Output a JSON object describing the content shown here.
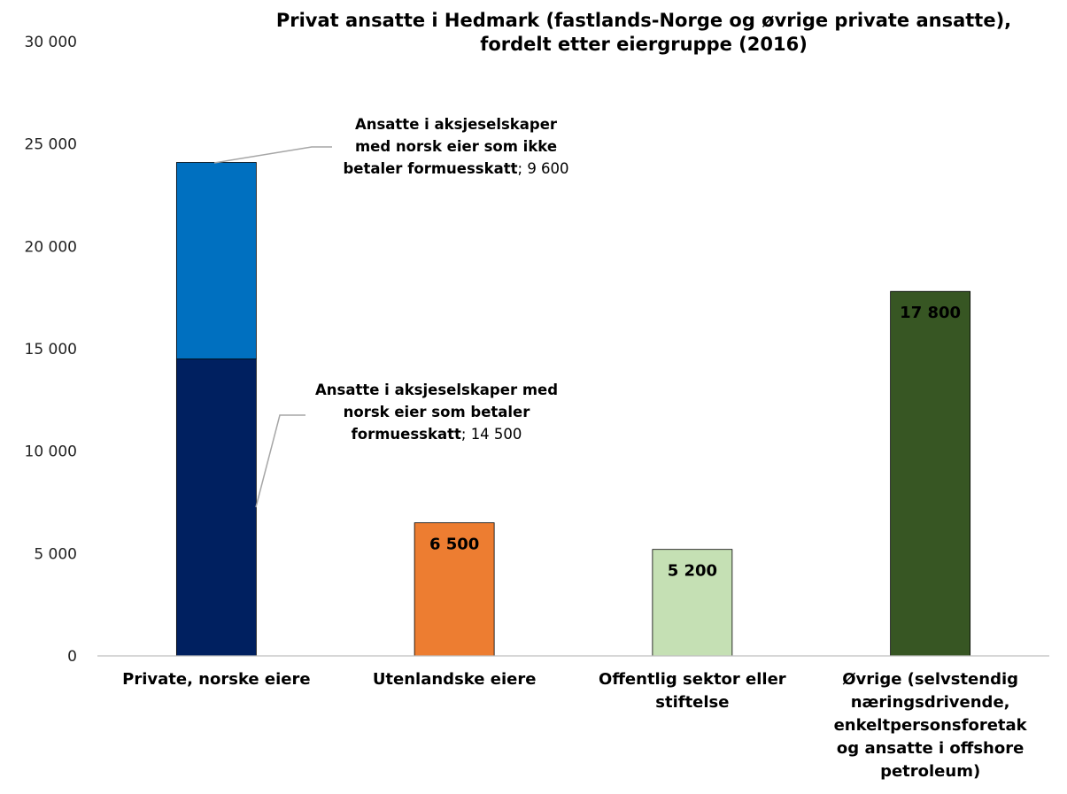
{
  "chart_data": {
    "type": "bar",
    "stacked": true,
    "title_lines": [
      "Privat ansatte i Hedmark (fastlands-Norge og øvrige private ansatte),",
      "fordelt etter eiergruppe (2016)"
    ],
    "ylim": [
      0,
      30000
    ],
    "ytick_values": [
      0,
      5000,
      10000,
      15000,
      20000,
      25000,
      30000
    ],
    "ytick_labels": [
      "0",
      "5 000",
      "10 000",
      "15 000",
      "20 000",
      "25 000",
      "30 000"
    ],
    "grid": false,
    "categories": [
      {
        "lines": [
          "Private, norske eiere"
        ]
      },
      {
        "lines": [
          "Utenlandske eiere"
        ]
      },
      {
        "lines": [
          "Offentlig sektor eller",
          "stiftelse"
        ]
      },
      {
        "lines": [
          "Øvrige (selvstendig",
          "næringsdrivende,",
          "enkeltpersonsforetak",
          "og ansatte i offshore",
          "petroleum)"
        ]
      }
    ],
    "segments": [
      {
        "category": 0,
        "value": 14500,
        "color": "#002060",
        "label_mode": "callout",
        "callout_bold_lines": [
          "Ansatte i aksjeselskaper med",
          "norsk eier som betaler",
          "formuesskatt"
        ],
        "callout_value_text": "14 500"
      },
      {
        "category": 0,
        "value": 9600,
        "color": "#0070C0",
        "label_mode": "callout",
        "callout_bold_lines": [
          "Ansatte i aksjeselskaper",
          "med norsk eier som ikke",
          "betaler formuesskatt"
        ],
        "callout_value_text": "9 600"
      },
      {
        "category": 1,
        "value": 6500,
        "color": "#ED7D31",
        "label_mode": "inside",
        "label_text": "6 500",
        "label_color": "#ffffff"
      },
      {
        "category": 2,
        "value": 5200,
        "color": "#C5E0B4",
        "label_mode": "inside",
        "label_text": "5 200",
        "label_color": "#000000"
      },
      {
        "category": 3,
        "value": 17800,
        "color": "#375623",
        "label_mode": "inside",
        "label_text": "17 800",
        "label_color": "#ffffff"
      }
    ]
  }
}
